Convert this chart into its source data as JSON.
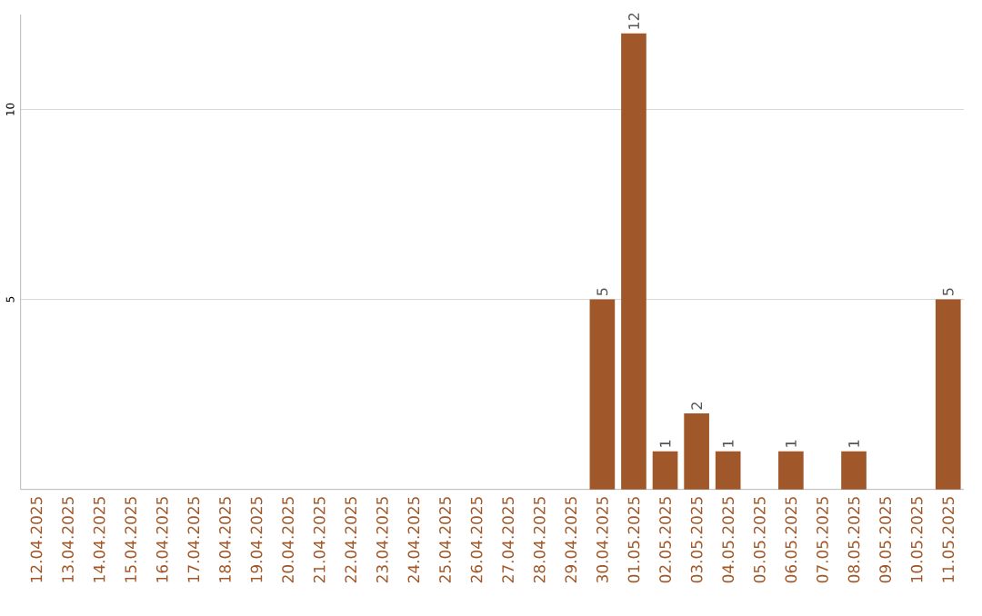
{
  "chart_data": {
    "type": "bar",
    "categories": [
      "12.04.2025",
      "13.04.2025",
      "14.04.2025",
      "15.04.2025",
      "16.04.2025",
      "17.04.2025",
      "18.04.2025",
      "19.04.2025",
      "20.04.2025",
      "21.04.2025",
      "22.04.2025",
      "23.04.2025",
      "24.04.2025",
      "25.04.2025",
      "26.04.2025",
      "27.04.2025",
      "28.04.2025",
      "29.04.2025",
      "30.04.2025",
      "01.05.2025",
      "02.05.2025",
      "03.05.2025",
      "04.05.2025",
      "05.05.2025",
      "06.05.2025",
      "07.05.2025",
      "08.05.2025",
      "09.05.2025",
      "10.05.2025",
      "11.05.2025"
    ],
    "values": [
      0,
      0,
      0,
      0,
      0,
      0,
      0,
      0,
      0,
      0,
      0,
      0,
      0,
      0,
      0,
      0,
      0,
      0,
      5,
      12,
      1,
      2,
      1,
      0,
      1,
      0,
      1,
      0,
      0,
      5
    ],
    "value_labels": [
      null,
      null,
      null,
      null,
      null,
      null,
      null,
      null,
      null,
      null,
      null,
      null,
      null,
      null,
      null,
      null,
      null,
      null,
      "5",
      "12",
      "1",
      "2",
      "1",
      null,
      "1",
      null,
      "1",
      null,
      null,
      "5"
    ],
    "color": "#a0582a",
    "ylim": [
      0,
      12.5
    ],
    "yticks": [
      5,
      10
    ],
    "grid": "y"
  }
}
